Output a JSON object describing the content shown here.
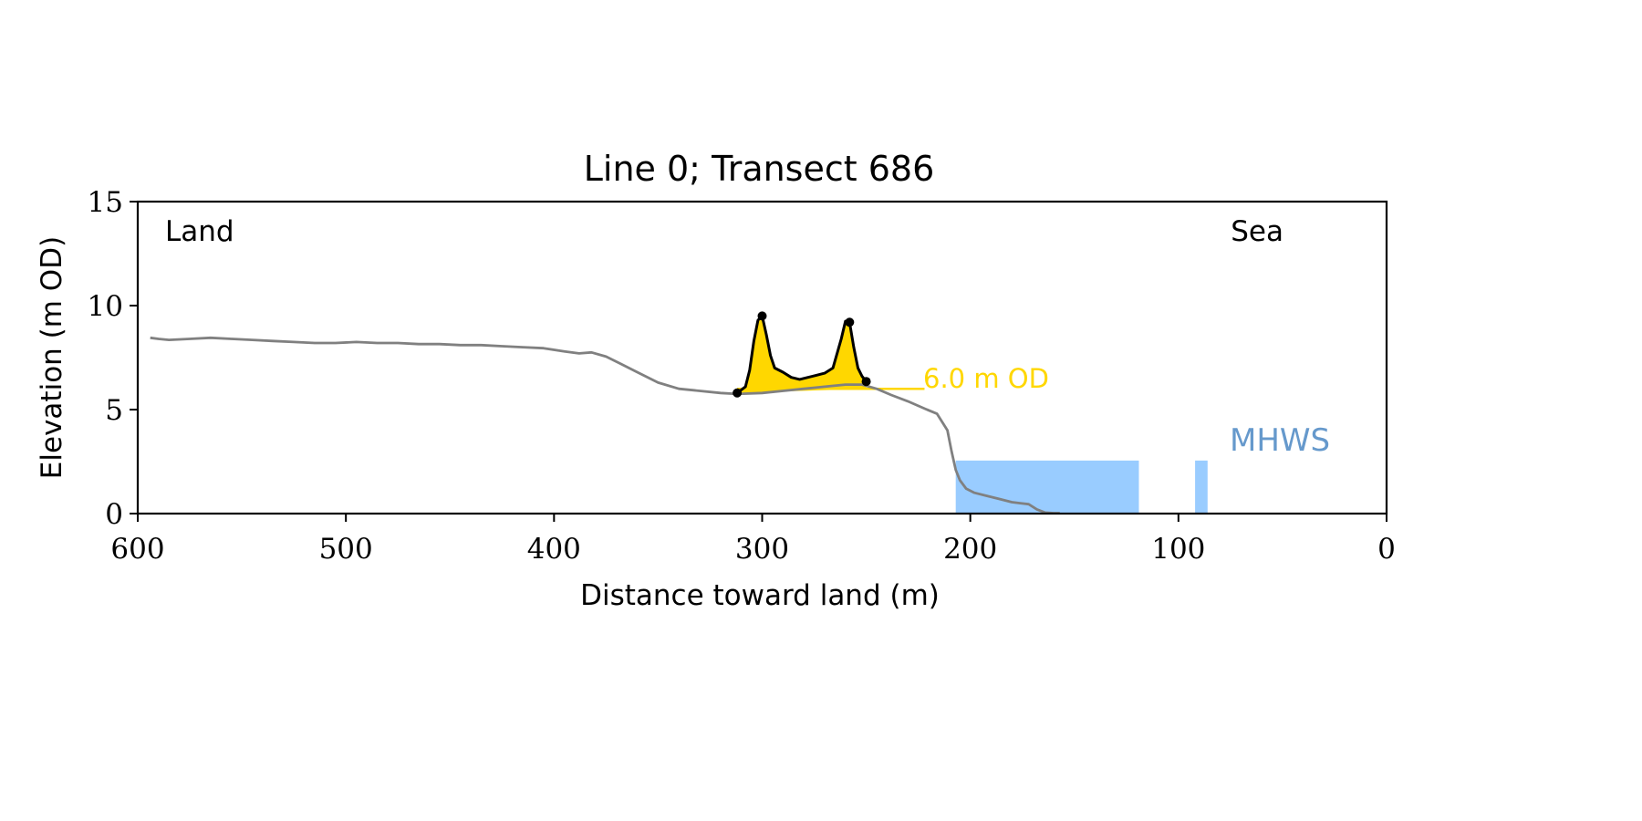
{
  "chart_data": {
    "type": "line",
    "title": "Line 0; Transect 686",
    "xlabel": "Distance toward land (m)",
    "ylabel": "Elevation (m OD)",
    "xlim": [
      600,
      0
    ],
    "ylim": [
      0,
      15
    ],
    "x_ticks": [
      600,
      500,
      400,
      300,
      200,
      100,
      0
    ],
    "y_ticks": [
      0,
      5,
      10,
      15
    ],
    "grid": false,
    "corner_labels": {
      "left": "Land",
      "right": "Sea"
    },
    "threshold": {
      "label": "6.0 m OD",
      "value": 6.0,
      "x_start": 312,
      "x_end": 222,
      "color": "#FFD700"
    },
    "mhws": {
      "label": "MHWS",
      "value": 2.55,
      "label_color": "#6699CC",
      "fill_color": "#99CCFF"
    },
    "water_fill": [
      {
        "x_start": 207,
        "x_end": 119,
        "y_top": 2.55
      },
      {
        "x_start": 92,
        "x_end": 86,
        "y_top": 2.55
      }
    ],
    "series": [
      {
        "role": "ground_profile",
        "color": "#808080",
        "x": [
          594,
          590,
          585,
          575,
          565,
          555,
          545,
          535,
          525,
          515,
          505,
          495,
          485,
          475,
          465,
          455,
          445,
          435,
          425,
          415,
          405,
          395,
          388,
          382,
          375,
          368,
          360,
          350,
          340,
          330,
          320,
          312,
          300,
          290,
          280,
          270,
          260,
          252,
          245,
          238,
          230,
          222,
          216,
          211,
          209,
          207,
          205,
          202,
          198,
          192,
          186,
          180,
          176,
          172,
          168,
          164,
          160,
          157
        ],
        "y": [
          8.45,
          8.4,
          8.35,
          8.4,
          8.45,
          8.4,
          8.35,
          8.3,
          8.25,
          8.2,
          8.2,
          8.25,
          8.2,
          8.2,
          8.15,
          8.15,
          8.1,
          8.1,
          8.05,
          8.0,
          7.95,
          7.8,
          7.7,
          7.75,
          7.55,
          7.2,
          6.8,
          6.3,
          6.0,
          5.9,
          5.8,
          5.75,
          5.8,
          5.9,
          6.0,
          6.1,
          6.2,
          6.2,
          6.0,
          5.7,
          5.4,
          5.05,
          4.8,
          4.0,
          3.0,
          2.1,
          1.6,
          1.2,
          1.0,
          0.85,
          0.7,
          0.55,
          0.5,
          0.45,
          0.2,
          0.05,
          0.02,
          0.02
        ]
      },
      {
        "role": "dune_outline",
        "color": "#000000",
        "x": [
          312,
          308,
          306,
          304,
          302,
          300,
          298,
          296,
          294,
          290,
          286,
          282,
          278,
          274,
          270,
          266,
          262,
          260,
          258,
          256,
          254,
          252,
          250
        ],
        "y": [
          5.8,
          6.1,
          6.9,
          8.3,
          9.3,
          9.5,
          8.6,
          7.6,
          7.0,
          6.8,
          6.55,
          6.45,
          6.55,
          6.65,
          6.75,
          7.0,
          8.4,
          9.25,
          9.2,
          8.0,
          7.0,
          6.6,
          6.35
        ]
      }
    ],
    "dune_markers": [
      {
        "x": 312,
        "y": 5.8
      },
      {
        "x": 300,
        "y": 9.5
      },
      {
        "x": 258,
        "y": 9.2
      },
      {
        "x": 250,
        "y": 6.35
      }
    ]
  }
}
